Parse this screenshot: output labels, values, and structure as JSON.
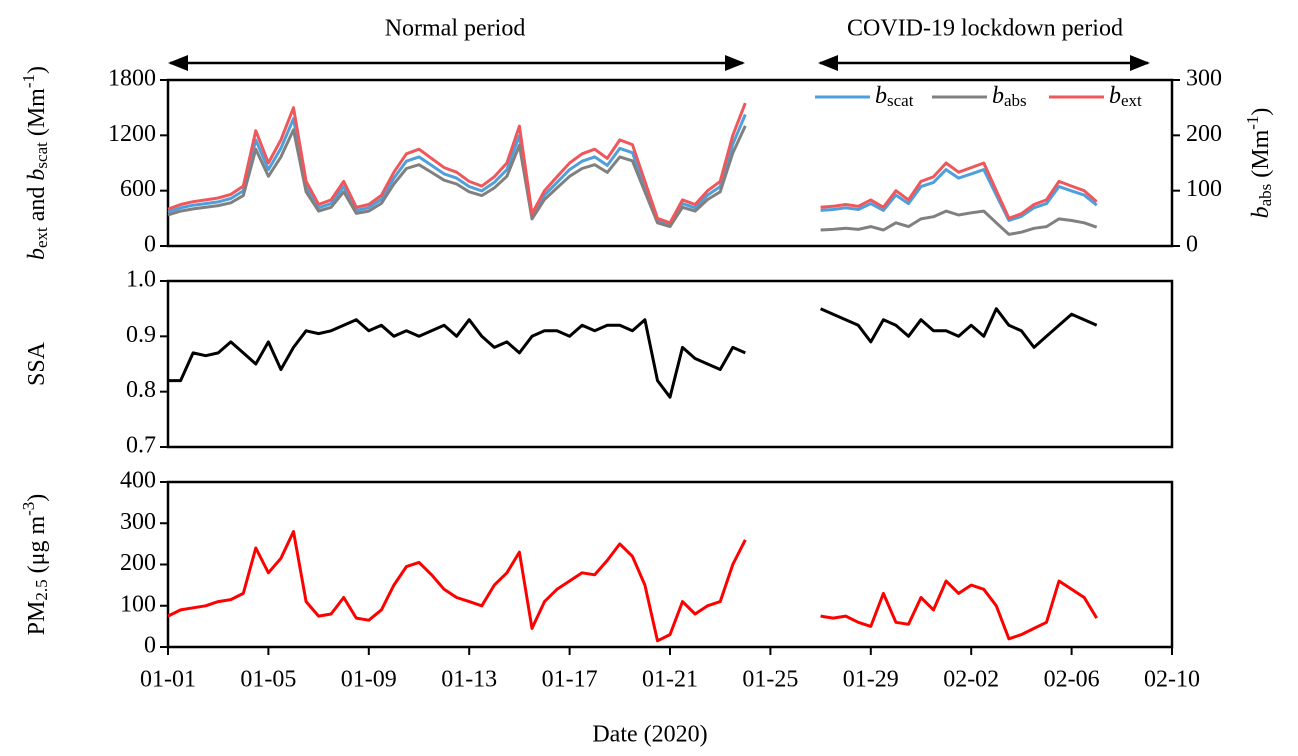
{
  "chart_data": [
    {
      "type": "line",
      "annotations": [
        "Normal period",
        "COVID-19 lockdown period"
      ],
      "ylabel": [
        {
          "text": "b",
          "italic": true
        },
        {
          "text": "ext",
          "script": "sub"
        },
        {
          "text": " and "
        },
        {
          "text": "b",
          "italic": true
        },
        {
          "text": "scat",
          "script": "sub"
        },
        {
          "text": " (Mm"
        },
        {
          "text": "-1",
          "script": "sup"
        },
        {
          "text": ")"
        }
      ],
      "y2label": [
        {
          "text": "b",
          "italic": true
        },
        {
          "text": "abs",
          "script": "sub"
        },
        {
          "text": " (Mm"
        },
        {
          "text": "-1",
          "script": "sup"
        },
        {
          "text": ")"
        }
      ],
      "xlim": [
        0,
        40
      ],
      "ylim": [
        0,
        1800
      ],
      "yticks": [
        0,
        600,
        1200,
        1800
      ],
      "y2lim": [
        0,
        300
      ],
      "y2ticks": [
        0,
        100,
        200,
        300
      ],
      "x": [
        0,
        0.5,
        1,
        1.5,
        2,
        2.5,
        3,
        3.5,
        4,
        4.5,
        5,
        5.5,
        6,
        6.5,
        7,
        7.5,
        8,
        8.5,
        9,
        9.5,
        10,
        10.5,
        11,
        11.5,
        12,
        12.5,
        13,
        13.5,
        14,
        14.5,
        15,
        15.5,
        16,
        16.5,
        17,
        17.5,
        18,
        18.5,
        19,
        19.5,
        20,
        20.5,
        21,
        21.5,
        22,
        22.5,
        23,
        23.5,
        24,
        24.5,
        25,
        25.5,
        26,
        26.5,
        27,
        27.5,
        28,
        28.5,
        29,
        29.5,
        30,
        30.5,
        31,
        31.5,
        32,
        32.5,
        33,
        33.5,
        34,
        34.5,
        35,
        35.5,
        36,
        36.5,
        37
      ],
      "series": [
        {
          "name": [
            {
              "text": "b",
              "italic": true
            },
            {
              "text": "scat",
              "script": "sub"
            }
          ],
          "color": "#4f9fdc",
          "values": [
            368,
            414,
            442,
            460,
            478,
            515,
            598,
            1150,
            828,
            1058,
            1380,
            644,
            414,
            460,
            644,
            386,
            414,
            506,
            736,
            920,
            966,
            874,
            782,
            736,
            644,
            598,
            690,
            828,
            1196,
            322,
            552,
            690,
            828,
            920,
            966,
            874,
            1058,
            1012,
            644,
            276,
            230,
            460,
            414,
            552,
            644,
            1104,
            1426,
            null,
            null,
            null,
            null,
            null,
            386,
            396,
            414,
            396,
            460,
            386,
            552,
            460,
            644,
            690,
            828,
            736,
            782,
            828,
            552,
            276,
            322,
            414,
            460,
            644,
            598,
            552,
            442
          ]
        },
        {
          "name": [
            {
              "text": "b",
              "italic": true
            },
            {
              "text": "abs",
              "script": "sub"
            }
          ],
          "color": "#808080",
          "axis": "y2",
          "values": [
            56,
            63,
            67,
            70,
            73,
            78,
            91,
            175,
            126,
            161,
            210,
            98,
            63,
            70,
            98,
            59,
            63,
            77,
            112,
            140,
            147,
            133,
            119,
            112,
            98,
            91,
            105,
            126,
            182,
            49,
            84,
            105,
            126,
            140,
            147,
            133,
            161,
            154,
            98,
            42,
            35,
            70,
            63,
            84,
            98,
            168,
            217,
            null,
            null,
            null,
            null,
            null,
            29,
            30,
            32,
            30,
            35,
            29,
            42,
            35,
            49,
            53,
            63,
            56,
            60,
            63,
            42,
            21,
            25,
            32,
            35,
            49,
            46,
            42,
            34
          ]
        },
        {
          "name": [
            {
              "text": "b",
              "italic": true
            },
            {
              "text": "ext",
              "script": "sub"
            }
          ],
          "color": "#f0575a",
          "values": [
            400,
            450,
            480,
            500,
            520,
            560,
            650,
            1250,
            900,
            1150,
            1500,
            700,
            450,
            500,
            700,
            420,
            450,
            550,
            800,
            1000,
            1050,
            950,
            850,
            800,
            700,
            650,
            750,
            900,
            1300,
            350,
            600,
            750,
            900,
            1000,
            1050,
            950,
            1150,
            1100,
            700,
            300,
            250,
            500,
            450,
            600,
            700,
            1200,
            1550,
            null,
            null,
            null,
            null,
            null,
            420,
            430,
            450,
            430,
            500,
            420,
            600,
            500,
            700,
            750,
            900,
            800,
            850,
            900,
            600,
            300,
            350,
            450,
            500,
            700,
            650,
            600,
            480
          ]
        }
      ]
    },
    {
      "type": "line",
      "ylabel": [
        {
          "text": "SSA"
        }
      ],
      "xlim": [
        0,
        40
      ],
      "ylim": [
        0.7,
        1.0
      ],
      "yticks": [
        0.7,
        0.8,
        0.9,
        {
          "value": 1,
          "label": "1.0"
        }
      ],
      "x": [
        0,
        0.5,
        1,
        1.5,
        2,
        2.5,
        3,
        3.5,
        4,
        4.5,
        5,
        5.5,
        6,
        6.5,
        7,
        7.5,
        8,
        8.5,
        9,
        9.5,
        10,
        10.5,
        11,
        11.5,
        12,
        12.5,
        13,
        13.5,
        14,
        14.5,
        15,
        15.5,
        16,
        16.5,
        17,
        17.5,
        18,
        18.5,
        19,
        19.5,
        20,
        20.5,
        21,
        21.5,
        22,
        22.5,
        23,
        23.5,
        24,
        24.5,
        25,
        25.5,
        26,
        26.5,
        27,
        27.5,
        28,
        28.5,
        29,
        29.5,
        30,
        30.5,
        31,
        31.5,
        32,
        32.5,
        33,
        33.5,
        34,
        34.5,
        35,
        35.5,
        36,
        36.5,
        37
      ],
      "series": [
        {
          "color": "#000000",
          "values": [
            0.82,
            0.82,
            0.87,
            0.865,
            0.87,
            0.89,
            0.87,
            0.85,
            0.89,
            0.84,
            0.88,
            0.91,
            0.905,
            0.91,
            0.92,
            0.93,
            0.91,
            0.92,
            0.9,
            0.91,
            0.9,
            0.91,
            0.92,
            0.9,
            0.93,
            0.9,
            0.88,
            0.89,
            0.87,
            0.9,
            0.91,
            0.91,
            0.9,
            0.92,
            0.91,
            0.92,
            0.92,
            0.91,
            0.93,
            0.82,
            0.79,
            0.88,
            0.86,
            0.85,
            0.84,
            0.88,
            0.87,
            null,
            null,
            null,
            null,
            null,
            0.95,
            0.94,
            0.93,
            0.92,
            0.89,
            0.93,
            0.92,
            0.9,
            0.93,
            0.91,
            0.91,
            0.9,
            0.92,
            0.9,
            0.95,
            0.92,
            0.91,
            0.88,
            0.9,
            0.92,
            0.94,
            0.93,
            0.92
          ]
        }
      ]
    },
    {
      "type": "line",
      "ylabel": [
        {
          "text": "PM"
        },
        {
          "text": "2.5",
          "script": "sub"
        },
        {
          "text": " (μg m"
        },
        {
          "text": "-3",
          "script": "sup"
        },
        {
          "text": ")"
        }
      ],
      "xlabel": "Date (2020)",
      "xlim": [
        0,
        40
      ],
      "xticks": [
        {
          "value": 0,
          "label": "01-01"
        },
        {
          "value": 4,
          "label": "01-05"
        },
        {
          "value": 8,
          "label": "01-09"
        },
        {
          "value": 12,
          "label": "01-13"
        },
        {
          "value": 16,
          "label": "01-17"
        },
        {
          "value": 20,
          "label": "01-21"
        },
        {
          "value": 24,
          "label": "01-25"
        },
        {
          "value": 28,
          "label": "01-29"
        },
        {
          "value": 32,
          "label": "02-02"
        },
        {
          "value": 36,
          "label": "02-06"
        },
        {
          "value": 40,
          "label": "02-10"
        }
      ],
      "ylim": [
        0,
        400
      ],
      "yticks": [
        0,
        100,
        200,
        300,
        400
      ],
      "x": [
        0,
        0.5,
        1,
        1.5,
        2,
        2.5,
        3,
        3.5,
        4,
        4.5,
        5,
        5.5,
        6,
        6.5,
        7,
        7.5,
        8,
        8.5,
        9,
        9.5,
        10,
        10.5,
        11,
        11.5,
        12,
        12.5,
        13,
        13.5,
        14,
        14.5,
        15,
        15.5,
        16,
        16.5,
        17,
        17.5,
        18,
        18.5,
        19,
        19.5,
        20,
        20.5,
        21,
        21.5,
        22,
        22.5,
        23,
        23.5,
        24,
        24.5,
        25,
        25.5,
        26,
        26.5,
        27,
        27.5,
        28,
        28.5,
        29,
        29.5,
        30,
        30.5,
        31,
        31.5,
        32,
        32.5,
        33,
        33.5,
        34,
        34.5,
        35,
        35.5,
        36,
        36.5,
        37
      ],
      "series": [
        {
          "color": "#ff0000",
          "values": [
            75,
            90,
            95,
            100,
            110,
            115,
            130,
            240,
            180,
            215,
            280,
            110,
            75,
            80,
            120,
            70,
            65,
            90,
            150,
            195,
            205,
            175,
            140,
            120,
            110,
            100,
            150,
            180,
            230,
            45,
            110,
            140,
            160,
            180,
            175,
            210,
            250,
            220,
            150,
            15,
            30,
            110,
            80,
            100,
            110,
            200,
            260,
            null,
            null,
            null,
            null,
            null,
            75,
            70,
            75,
            60,
            50,
            130,
            60,
            55,
            120,
            90,
            160,
            130,
            150,
            140,
            100,
            20,
            30,
            45,
            60,
            160,
            140,
            120,
            70
          ]
        }
      ]
    }
  ]
}
